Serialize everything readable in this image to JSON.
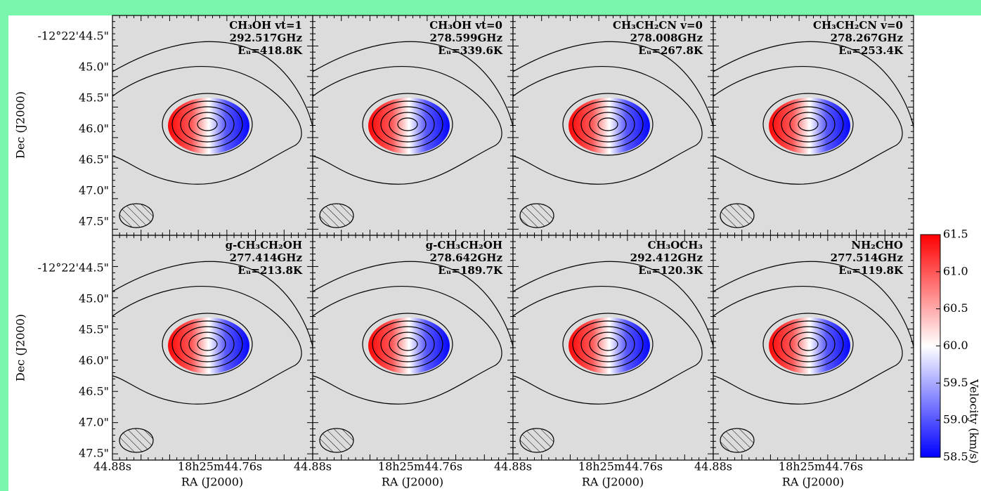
{
  "figure": {
    "panels": [
      {
        "lines": [
          "CH₃OH vt=1",
          "292.517GHz",
          "Eᵤ=418.8K"
        ]
      },
      {
        "lines": [
          "CH₃OH vt=0",
          "278.599GHz",
          "Eᵤ=339.6K"
        ]
      },
      {
        "lines": [
          "CH₃CH₂CN v=0",
          "278.008GHz",
          "Eᵤ=267.8K"
        ]
      },
      {
        "lines": [
          "CH₃CH₂CN v=0",
          "278.267GHz",
          "Eᵤ=253.4K"
        ]
      },
      {
        "lines": [
          "g-CH₃CH₂OH",
          "277.414GHz",
          "Eᵤ=213.8K"
        ]
      },
      {
        "lines": [
          "g-CH₃CH₂OH",
          "278.642GHz",
          "Eᵤ=189.7K"
        ]
      },
      {
        "lines": [
          "CH₃OCH₃",
          "292.412GHz",
          "Eᵤ=120.3K"
        ]
      },
      {
        "lines": [
          "NH₂CHO",
          "277.514GHz",
          "Eᵤ=119.8K"
        ]
      }
    ],
    "y_tick_labels": [
      "-12°22'44.5\"",
      "45.0\"",
      "45.5\"",
      "46.0\"",
      "46.5\"",
      "47.0\"",
      "47.5\""
    ],
    "x_tick_labels": [
      "44.88s",
      "18h25m44.76s"
    ],
    "y_label": "Dec (J2000)",
    "x_label": "RA (J2000)",
    "colorbar": {
      "lim": [
        58.5,
        61.5
      ],
      "ticks": [
        61.5,
        {
          "value": 61,
          "label": "61.0"
        },
        60.5,
        {
          "value": 60,
          "label": "60.0"
        },
        59.5,
        {
          "value": 59,
          "label": "59.0"
        },
        58.5
      ],
      "label": "Velocity (km/s)"
    }
  }
}
